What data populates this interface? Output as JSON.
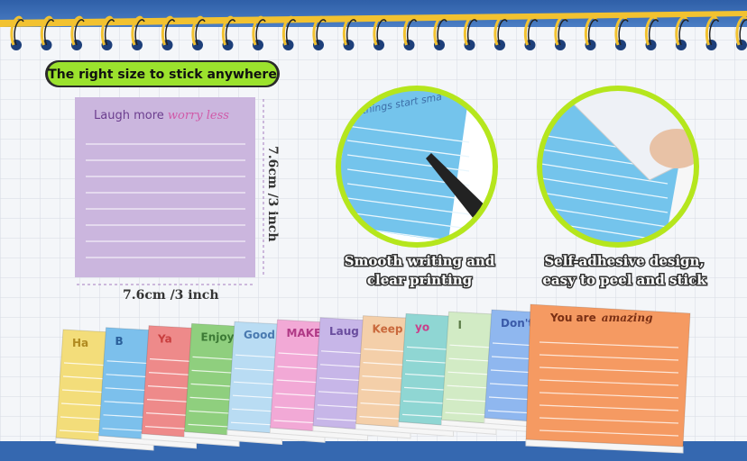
{
  "banner": "The right size to stick anywhere",
  "sample_note": {
    "text": "Laugh more",
    "accent": "worry less"
  },
  "dimensions": {
    "height": "7.6cm /3 inch",
    "width": "7.6cm /3 inch"
  },
  "features": [
    {
      "caption": [
        "Smooth writing and",
        "clear printing"
      ],
      "note_text": "y things start sma"
    },
    {
      "caption": [
        "Self-adhesive design,",
        "easy to peel and stick"
      ]
    }
  ],
  "pads": [
    "Ha",
    "B",
    "Ya",
    "Enjoy",
    "Good",
    "MAKE",
    "Laug",
    "Keep",
    "yo",
    "I",
    "Don't"
  ],
  "front_pad": {
    "text": "You are",
    "accent": "amazing"
  }
}
